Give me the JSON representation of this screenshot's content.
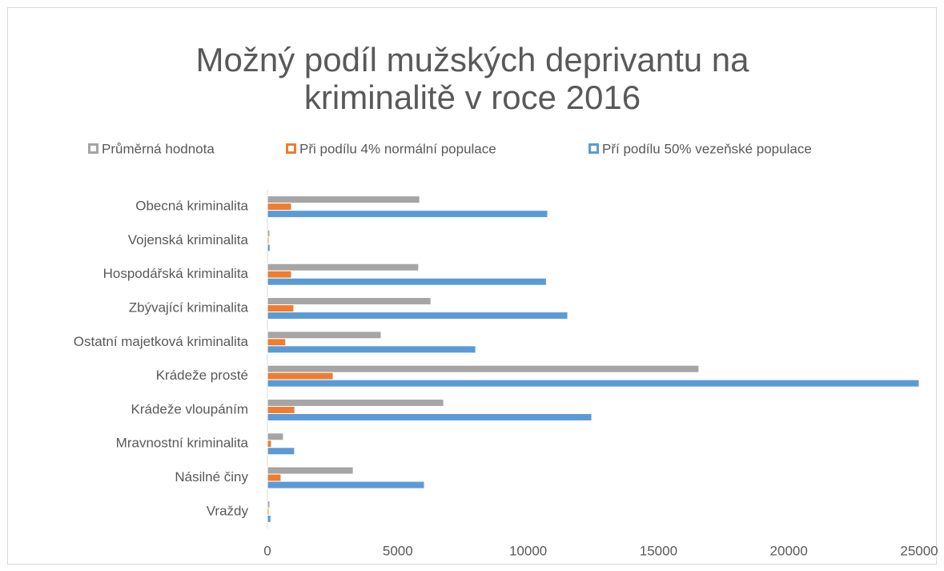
{
  "chart_data": {
    "type": "hbar",
    "title": [
      "Možný podíl mužských deprivantu na",
      "kriminalitě v roce 2016"
    ],
    "categories": [
      "Obecná kriminalita",
      "Vojenská kriminalita",
      "Hospodářská kriminalita",
      "Zbývající kriminalita",
      "Ostatní majetková kriminalita",
      "Krádeže prosté",
      "Krádeže vloupáním",
      "Mravnostní kriminalita",
      "Násilné činy",
      "Vraždy"
    ],
    "series": [
      {
        "name": "Průměrná hodnota",
        "color": "#a5a5a5",
        "values": [
          5840,
          90,
          5800,
          6270,
          4360,
          16550,
          6760,
          610,
          3290,
          90
        ]
      },
      {
        "name": "Při podílu 4% normální populace",
        "color": "#ed7d31",
        "values": [
          920,
          60,
          920,
          1010,
          700,
          2520,
          1050,
          150,
          520,
          60
        ]
      },
      {
        "name": "Pří podílu 50% vezeňské populace",
        "color": "#5b9bd5",
        "values": [
          10750,
          100,
          10700,
          11520,
          7990,
          25000,
          12440,
          1040,
          6020,
          130
        ]
      }
    ],
    "xlim": [
      0,
      25000
    ],
    "xticks": [
      0,
      5000,
      10000,
      15000,
      20000,
      25000
    ],
    "legend": "top"
  }
}
